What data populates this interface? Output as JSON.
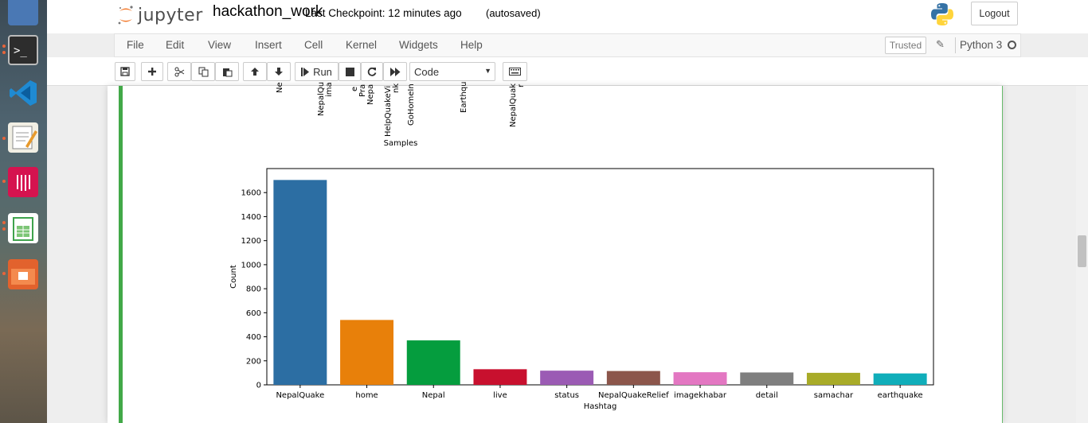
{
  "header": {
    "logo_text": "jupyter",
    "notebook_name": "hackathon_work",
    "checkpoint": "Last Checkpoint: 12 minutes ago",
    "autosave_status": "(autosaved)",
    "logout_label": "Logout"
  },
  "menubar": {
    "items": [
      "File",
      "Edit",
      "View",
      "Insert",
      "Cell",
      "Kernel",
      "Widgets",
      "Help"
    ],
    "trusted_label": "Trusted",
    "kernel_name": "Python 3"
  },
  "toolbar": {
    "run_label": "Run",
    "cell_type": "Code"
  },
  "prev_output": {
    "tick_labels": [
      "Ne",
      "NepalQu",
      "ima",
      "e",
      "Pra",
      "Nepa",
      "HelpQuakeVi",
      "nk",
      "GoHomeIn",
      "Earthqu",
      "NepalQuak",
      "r"
    ],
    "xlabel": "Samples"
  },
  "colors": {
    "cell_selected": "#42a948",
    "jupyter_orange": "#f37626"
  },
  "chart_data": {
    "type": "bar",
    "categories": [
      "NepalQuake",
      "home",
      "Nepal",
      "live",
      "status",
      "NepalQuakeRelief",
      "imagekhabar",
      "detail",
      "samachar",
      "earthquake"
    ],
    "values": [
      1705,
      540,
      370,
      130,
      118,
      115,
      105,
      103,
      100,
      95
    ],
    "colors": [
      "#2c6ea3",
      "#e8800a",
      "#059d3e",
      "#c8102e",
      "#9b5bb4",
      "#8c564b",
      "#e377c2",
      "#7f7f7f",
      "#a8ab28",
      "#10aeba"
    ],
    "xlabel": "Hashtag",
    "ylabel": "Count",
    "ylim": [
      0,
      1800
    ],
    "yticks": [
      0,
      200,
      400,
      600,
      800,
      1000,
      1200,
      1400,
      1600
    ]
  }
}
